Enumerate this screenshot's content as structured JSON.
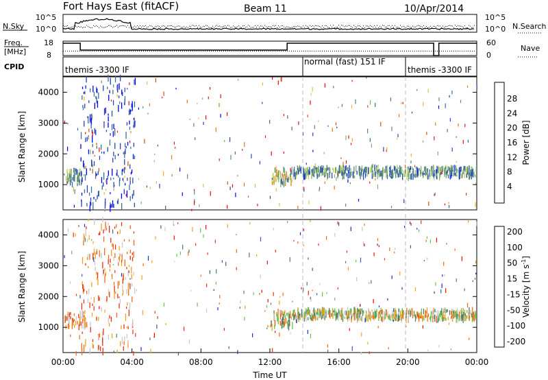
{
  "header": {
    "station": "Fort Hays East (fitACF)",
    "beam": "Beam 11",
    "date": "10/Apr/2014"
  },
  "top_panel": {
    "left_label": "N.Sky",
    "left_ticks": [
      "10^5",
      "10^0"
    ],
    "right_label": "N.Search",
    "right_ticks": [
      "10^5",
      "10^0"
    ]
  },
  "freq_panel": {
    "left_label_1": "Freq.",
    "left_label_2": "[MHz]",
    "left_ticks": [
      "18",
      "8"
    ],
    "right_label": "Nave",
    "right_ticks": [
      "60",
      "0"
    ]
  },
  "cpid_panel": {
    "label": "CPID",
    "segments": [
      {
        "text": "themis -3300 IF",
        "start_hour": 0
      },
      {
        "text": "normal (fast) 151 IF",
        "start_hour": 14
      },
      {
        "text": "themis -3300 IF",
        "start_hour": 20
      }
    ]
  },
  "x_axis": {
    "label": "Time UT",
    "tick_labels": [
      "00:00",
      "04:00",
      "08:00",
      "12:00",
      "16:00",
      "20:00",
      "00:00"
    ],
    "range_hours": [
      0,
      24
    ]
  },
  "chart_data": [
    {
      "type": "heatmap",
      "panel": "power",
      "ylabel": "Slant Range [km]",
      "y_ticks": [
        1000,
        2000,
        3000,
        4000
      ],
      "ylim": [
        180,
        4500
      ],
      "xlim_hours": [
        0,
        24
      ],
      "colorbar": {
        "label": "Power [dB]",
        "tick_labels": [
          "28",
          "24",
          "20",
          "16",
          "12",
          "8",
          "4"
        ],
        "range": [
          0,
          32
        ],
        "colors": [
          "#0000ff",
          "#2244bb",
          "#3c6e9c",
          "#5a8a6e",
          "#7fb27a",
          "#b5d060",
          "#f1b02a",
          "#e07818",
          "#d24d10",
          "#e01010",
          "#ff0000"
        ]
      },
      "regions": [
        {
          "t_start": 0.1,
          "t_end": 1.3,
          "r_start": 1000,
          "r_end": 1500,
          "level": "mid"
        },
        {
          "t_start": 1.0,
          "t_end": 4.2,
          "r_start": 200,
          "r_end": 4500,
          "level": "low"
        },
        {
          "t_start": 12.0,
          "t_end": 13.3,
          "r_start": 1000,
          "r_end": 1500,
          "level": "high"
        },
        {
          "t_start": 13.3,
          "t_end": 24.0,
          "r_start": 1250,
          "r_end": 1550,
          "level": "mid"
        }
      ]
    },
    {
      "type": "heatmap",
      "panel": "velocity",
      "ylabel": "Slant Range [km]",
      "y_ticks": [
        1000,
        2000,
        3000,
        4000
      ],
      "ylim": [
        180,
        4500
      ],
      "xlim_hours": [
        0,
        24
      ],
      "colorbar": {
        "label": "Velocity [m s",
        "label_superscript": "-1",
        "label_close": "]",
        "tick_labels": [
          "200",
          "100",
          "50",
          "15",
          "-15",
          "-50",
          "-100",
          "-200"
        ],
        "colors": [
          "#1a2fb8",
          "#3b5a9a",
          "#4c7a6a",
          "#62c04a",
          "#c8c8c8",
          "#f2a020",
          "#f06818",
          "#e83010",
          "#ff0000"
        ]
      },
      "regions": [
        {
          "t_start": 0.1,
          "t_end": 1.3,
          "r_start": 1000,
          "r_end": 1500,
          "level": "neg"
        },
        {
          "t_start": 1.0,
          "t_end": 4.2,
          "r_start": 200,
          "r_end": 4500,
          "level": "neg"
        },
        {
          "t_start": 12.0,
          "t_end": 13.3,
          "r_start": 1000,
          "r_end": 1500,
          "level": "mixed"
        },
        {
          "t_start": 13.3,
          "t_end": 24.0,
          "r_start": 1250,
          "r_end": 1550,
          "level": "mixed"
        }
      ]
    }
  ]
}
